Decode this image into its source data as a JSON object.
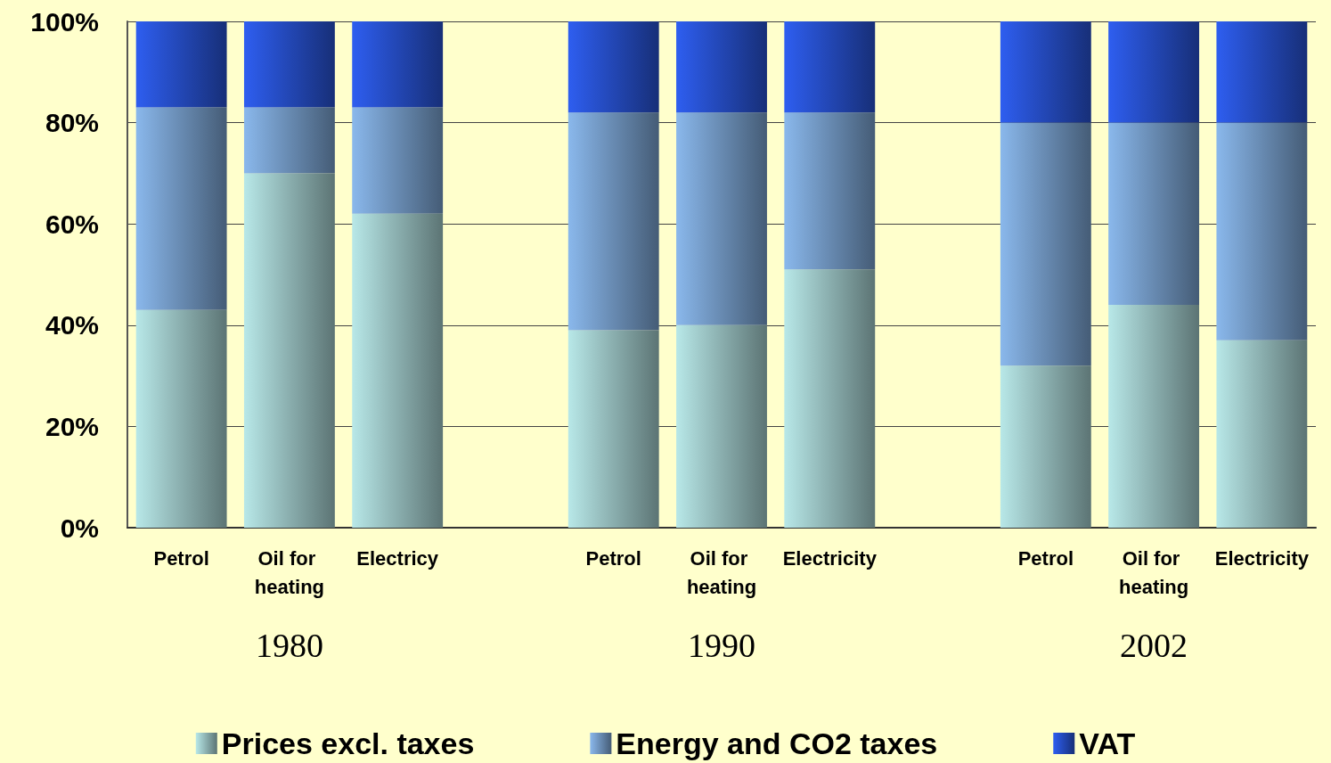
{
  "chart_data": {
    "type": "bar",
    "stacked": true,
    "categories": [
      "Petrol",
      "Oil for heating",
      "Electricy",
      null,
      "Petrol",
      "Oil for heating",
      "Electricity",
      null,
      "Petrol",
      "Oil for heating",
      "Electricity"
    ],
    "series": [
      {
        "name": "Prices excl. taxes",
        "color": "#b8e8e8",
        "values": [
          43,
          70,
          62,
          null,
          39,
          40,
          51,
          null,
          32,
          44,
          37
        ]
      },
      {
        "name": "Energy and CO2 taxes",
        "color": "#8ab8ec",
        "values": [
          40,
          13,
          21,
          null,
          43,
          42,
          31,
          null,
          48,
          36,
          43
        ]
      },
      {
        "name": "VAT",
        "color": "#2e5ef0",
        "values": [
          17,
          17,
          17,
          null,
          18,
          18,
          18,
          null,
          20,
          20,
          20
        ]
      }
    ],
    "ylim": [
      0,
      100
    ],
    "yticks": [
      {
        "value": 0,
        "label": "0%"
      },
      {
        "value": 20,
        "label": "20%"
      },
      {
        "value": 40,
        "label": "40%"
      },
      {
        "value": 60,
        "label": "60%"
      },
      {
        "value": 80,
        "label": "80%"
      },
      {
        "value": 100,
        "label": "100%"
      }
    ],
    "grid": "y",
    "legend": "bottom",
    "annotations": [
      "1980",
      "1990",
      "2002"
    ]
  }
}
